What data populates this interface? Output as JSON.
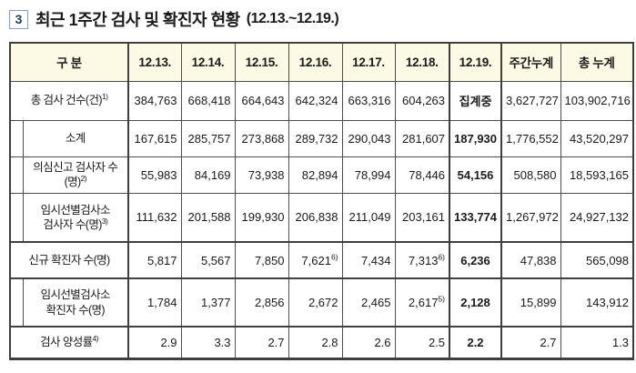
{
  "title": {
    "number": "3",
    "text": "최근 1주간 검사 및 확진자 현황",
    "period": "(12.13.~12.19.)"
  },
  "colors": {
    "header_bg": "#fcf9e4",
    "border": "#3f3f3f"
  },
  "table": {
    "header": [
      "구 분",
      "12.13.",
      "12.14.",
      "12.15.",
      "12.16.",
      "12.17.",
      "12.18.",
      "12.19.",
      "주간누계",
      "총 누계"
    ],
    "rows": [
      {
        "label": "총 검사 건수(건)^1)",
        "indent": false,
        "group": false,
        "values": [
          "384,763",
          "668,418",
          "664,643",
          "642,324",
          "663,316",
          "604,263",
          "집계중",
          "3,627,727",
          "103,902,716"
        ]
      },
      {
        "label": "소계",
        "indent": true,
        "group": false,
        "values": [
          "167,615",
          "285,757",
          "273,868",
          "289,732",
          "290,043",
          "281,607",
          "187,930",
          "1,776,552",
          "43,520,297"
        ]
      },
      {
        "label": "의심신고 검사자 수(명)^2)",
        "indent": true,
        "group": false,
        "values": [
          "55,983",
          "84,169",
          "73,938",
          "82,894",
          "78,994",
          "78,446",
          "54,156",
          "508,580",
          "18,593,165"
        ]
      },
      {
        "label": "임시선별검사소\n검사자 수(명)^3)",
        "indent": true,
        "group": false,
        "values": [
          "111,632",
          "201,588",
          "199,930",
          "206,838",
          "211,049",
          "203,161",
          "133,774",
          "1,267,972",
          "24,927,132"
        ]
      },
      {
        "label": "신규 확진자 수(명)",
        "indent": false,
        "group": true,
        "values": [
          "5,817",
          "5,567",
          "7,850",
          "7,621^6)",
          "7,434",
          "7,313^6)",
          "6,236",
          "47,838",
          "565,098"
        ]
      },
      {
        "label": "임시선별검사소\n확진자 수(명)",
        "indent": true,
        "group": true,
        "values": [
          "1,784",
          "1,377",
          "2,856",
          "2,672",
          "2,465",
          "2,617^5)",
          "2,128",
          "15,899",
          "143,912"
        ]
      },
      {
        "label": "검사 양성률^4)",
        "indent": false,
        "group": true,
        "values": [
          "2.9",
          "3.3",
          "2.7",
          "2.8",
          "2.6",
          "2.5",
          "2.2",
          "2.7",
          "1.3"
        ]
      }
    ]
  }
}
